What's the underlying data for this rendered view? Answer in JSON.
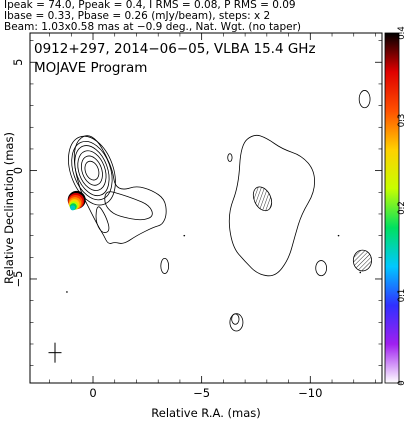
{
  "header": {
    "line1": "Ipeak = 74.0, Ppeak = 0.4, I RMS = 0.08, P RMS = 0.09",
    "line2": "Ibase = 0.33, Pbase = 0.26 (mJy/beam), steps: x 2",
    "line3": "Beam: 1.03x0.58 mas at −0.9 deg., Nat. Wgt. (no taper)"
  },
  "plot": {
    "title": "0912+297, 2014−06−05, VLBA 15.4 GHz",
    "subtitle": "MOJAVE Program"
  },
  "chart_data": {
    "type": "contour",
    "xlabel": "Relative R.A. (mas)",
    "ylabel": "Relative Declination (mas)",
    "x_ticks": [
      0,
      -5,
      -10
    ],
    "x_tick_labels": [
      "0",
      "−5",
      "−10"
    ],
    "y_ticks": [
      5,
      0,
      -5
    ],
    "y_tick_labels": [
      "5",
      "0",
      "−5"
    ],
    "xlim": [
      2.9,
      -13.3
    ],
    "ylim": [
      -9.8,
      6.35
    ],
    "x_direction": "reversed",
    "colorbar": {
      "range": [
        0,
        0.4
      ],
      "ticks": [
        0,
        0.1,
        0.2,
        0.3,
        0.4
      ],
      "tick_labels": [
        "0",
        "0.1",
        "0.2",
        "0.3",
        "0.4"
      ],
      "colors": [
        "#ffffff",
        "#a020f0",
        "#3030ff",
        "#00c8ff",
        "#00e060",
        "#c8ff00",
        "#ffd000",
        "#ff5000",
        "#e00000",
        "#000000"
      ]
    },
    "core_contours": {
      "center": [
        0.05,
        0.0
      ],
      "semi_axes": [
        [
          0.3,
          0.45
        ],
        [
          0.45,
          0.7
        ],
        [
          0.6,
          0.95
        ],
        [
          0.72,
          1.2
        ],
        [
          0.85,
          1.4
        ],
        [
          0.98,
          1.65
        ]
      ],
      "rotation_deg": -20
    },
    "jet_outer_contour": [
      [
        0.8,
        1.3
      ],
      [
        0.9,
        0.4
      ],
      [
        0.6,
        -0.9
      ],
      [
        0.2,
        -1.7
      ],
      [
        -0.2,
        -2.5
      ],
      [
        -0.5,
        -3.0
      ],
      [
        -0.7,
        -3.4
      ],
      [
        -1.0,
        -3.3
      ],
      [
        -1.4,
        -3.4
      ],
      [
        -2.0,
        -3.0
      ],
      [
        -2.8,
        -2.6
      ],
      [
        -3.2,
        -2.5
      ],
      [
        -3.4,
        -2.0
      ],
      [
        -3.3,
        -1.3
      ],
      [
        -2.7,
        -0.9
      ],
      [
        -2.0,
        -0.7
      ],
      [
        -1.4,
        -0.9
      ],
      [
        -1.0,
        -0.7
      ],
      [
        -0.9,
        0.0
      ],
      [
        -0.6,
        0.7
      ],
      [
        -0.2,
        1.4
      ],
      [
        0.3,
        1.7
      ]
    ],
    "jet_inner_contour": [
      [
        -0.6,
        -0.9
      ],
      [
        -1.3,
        -1.1
      ],
      [
        -1.9,
        -1.3
      ],
      [
        -2.6,
        -1.6
      ],
      [
        -2.8,
        -2.1
      ],
      [
        -2.3,
        -2.3
      ],
      [
        -1.6,
        -2.2
      ],
      [
        -0.9,
        -2.0
      ],
      [
        -0.5,
        -1.5
      ]
    ],
    "jet_lobe_contour": [
      [
        -0.2,
        -1.5
      ],
      [
        -0.6,
        -2.1
      ],
      [
        -0.8,
        -2.8
      ],
      [
        -0.4,
        -2.9
      ],
      [
        -0.1,
        -2.3
      ]
    ],
    "hotspot_contour": [
      [
        -6.8,
        1.2
      ],
      [
        -6.7,
        -0.7
      ],
      [
        -6.2,
        -2.0
      ],
      [
        -6.4,
        -3.5
      ],
      [
        -7.0,
        -4.2
      ],
      [
        -7.6,
        -4.8
      ],
      [
        -8.4,
        -4.9
      ],
      [
        -9.0,
        -4.1
      ],
      [
        -9.3,
        -3.0
      ],
      [
        -9.6,
        -2.0
      ],
      [
        -10.2,
        -1.0
      ],
      [
        -10.2,
        0.0
      ],
      [
        -9.6,
        0.7
      ],
      [
        -8.7,
        1.0
      ],
      [
        -8.0,
        1.5
      ],
      [
        -7.4,
        1.7
      ]
    ],
    "small_contours": [
      {
        "cx": -3.3,
        "cy": -4.4,
        "rx": 0.18,
        "ry": 0.35
      },
      {
        "cx": -6.3,
        "cy": 0.6,
        "rx": 0.1,
        "ry": 0.18
      },
      {
        "cx": -10.5,
        "cy": -4.5,
        "rx": 0.25,
        "ry": 0.35
      },
      {
        "cx": -12.5,
        "cy": 3.3,
        "rx": 0.25,
        "ry": 0.4
      },
      {
        "cx": -6.6,
        "cy": -7.0,
        "rx": 0.3,
        "ry": 0.4
      },
      {
        "cx": -6.55,
        "cy": -6.85,
        "rx": 0.17,
        "ry": 0.24
      }
    ],
    "hatched_ellipses": [
      {
        "cx": -7.8,
        "cy": -1.3,
        "rx": 0.38,
        "ry": 0.58,
        "rot": -25
      },
      {
        "cx": -12.4,
        "cy": -4.15,
        "rx": 0.42,
        "ry": 0.48,
        "rot": 0
      }
    ],
    "dots": [
      [
        1.2,
        -5.6
      ],
      [
        -12.3,
        -4.7
      ],
      [
        -4.2,
        -3.0
      ],
      [
        -11.3,
        -3.0
      ]
    ],
    "beam": {
      "x": 1.75,
      "y": -8.4,
      "major": 1.03,
      "minor": 0.58,
      "pa_deg": -0.9
    },
    "polarization_blob": {
      "x": 0.75,
      "y": -1.35,
      "peak": 0.4,
      "colors": [
        "#000000",
        "#d40000",
        "#ff4000",
        "#ff9000",
        "#ffd200",
        "#b4ff00",
        "#00d050",
        "#00c8c8"
      ]
    }
  }
}
